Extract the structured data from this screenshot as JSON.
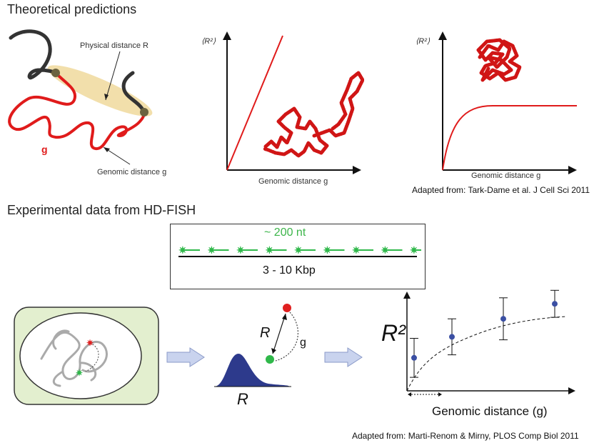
{
  "section1": {
    "title": "Theoretical predictions",
    "sketch": {
      "physical_label": "Physical distance R",
      "genomic_label": "Genomic distance g",
      "g_mark": "g"
    },
    "plot_linear": {
      "ylabel": "⟨R²⟩",
      "xlabel": "Genomic distance g"
    },
    "plot_plateau": {
      "ylabel": "⟨R²⟩",
      "xlabel": "Genomic distance g"
    },
    "citation": "Adapted from: Tark-Dame et al. J Cell Sci 2011"
  },
  "section2": {
    "title": "Experimental data from HD-FISH",
    "probe_box": {
      "probe_size": "~ 200 nt",
      "span": "3 - 10 Kbp"
    },
    "cell_diagram": {
      "r_label": "R",
      "g_label": "g",
      "dist_label": "R"
    },
    "citation": "Adapted from: Marti-Renom & Mirny, PLOS Comp Biol 2011"
  },
  "chart_data": {
    "type": "scatter",
    "title": "",
    "xlabel": "Genomic distance (g)",
    "ylabel": "R²",
    "series": [
      {
        "x": [
          1,
          2,
          3,
          4
        ],
        "y": [
          1.1,
          1.8,
          2.4,
          2.9
        ],
        "err": [
          0.65,
          0.6,
          0.7,
          0.45
        ]
      }
    ],
    "fit": "dashed saturating curve",
    "colors": {
      "point": "#3b4fa3",
      "probe_red": "#e02020",
      "probe_green": "#2fb84a",
      "arrow_fill": "#c9d3ee"
    }
  }
}
